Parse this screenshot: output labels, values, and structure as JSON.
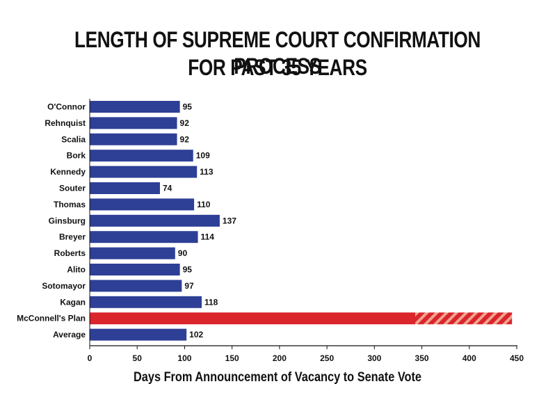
{
  "chart_data": {
    "type": "bar",
    "orientation": "horizontal",
    "title_line1": "LENGTH OF SUPREME COURT CONFIRMATION PROCESS",
    "title_line2": "FOR PAST 35 YEARS",
    "xlabel": "Days From Announcement of Vacancy to Senate Vote",
    "ylabel": "",
    "xlim": [
      0,
      450
    ],
    "xticks": [
      0,
      50,
      100,
      150,
      200,
      250,
      300,
      350,
      400,
      450
    ],
    "categories": [
      "O'Connor",
      "Rehnquist",
      "Scalia",
      "Bork",
      "Kennedy",
      "Souter",
      "Thomas",
      "Ginsburg",
      "Breyer",
      "Roberts",
      "Alito",
      "Sotomayor",
      "Kagan",
      "McConnell's Plan",
      "Average"
    ],
    "values": [
      95,
      92,
      92,
      109,
      113,
      74,
      110,
      137,
      114,
      90,
      95,
      97,
      118,
      null,
      102
    ],
    "value_labels": [
      "95",
      "92",
      "92",
      "109",
      "113",
      "74",
      "110",
      "137",
      "114",
      "90",
      "95",
      "97",
      "118",
      "",
      "102"
    ],
    "special_bar": {
      "category": "McConnell's Plan",
      "solid_value": 343,
      "hatched_until": 445
    },
    "colors": {
      "bar": "#2e3f96",
      "special": "#d9252b",
      "hatch_stripe": "#f2a38f",
      "axis": "#111111"
    }
  }
}
